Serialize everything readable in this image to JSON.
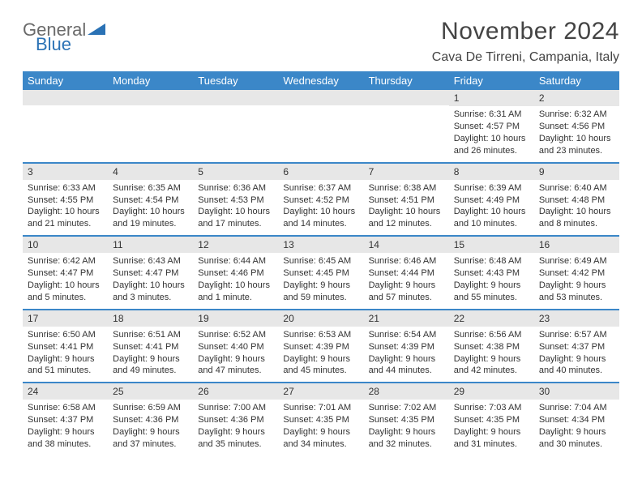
{
  "brand": {
    "word1": "General",
    "word2": "Blue",
    "triangle_color": "#2a72b5",
    "word1_color": "#6a6a6a",
    "word2_color": "#2a72b5"
  },
  "header": {
    "title": "November 2024",
    "location": "Cava De Tirreni, Campania, Italy"
  },
  "colors": {
    "header_bar": "#3b87c8",
    "daynum_bg": "#e7e7e7",
    "rule": "#3b87c8",
    "text": "#333333",
    "bg": "#ffffff"
  },
  "dow": [
    "Sunday",
    "Monday",
    "Tuesday",
    "Wednesday",
    "Thursday",
    "Friday",
    "Saturday"
  ],
  "weeks": [
    [
      {
        "n": "",
        "sunrise": "",
        "sunset": "",
        "daylight": ""
      },
      {
        "n": "",
        "sunrise": "",
        "sunset": "",
        "daylight": ""
      },
      {
        "n": "",
        "sunrise": "",
        "sunset": "",
        "daylight": ""
      },
      {
        "n": "",
        "sunrise": "",
        "sunset": "",
        "daylight": ""
      },
      {
        "n": "",
        "sunrise": "",
        "sunset": "",
        "daylight": ""
      },
      {
        "n": "1",
        "sunrise": "Sunrise: 6:31 AM",
        "sunset": "Sunset: 4:57 PM",
        "daylight": "Daylight: 10 hours and 26 minutes."
      },
      {
        "n": "2",
        "sunrise": "Sunrise: 6:32 AM",
        "sunset": "Sunset: 4:56 PM",
        "daylight": "Daylight: 10 hours and 23 minutes."
      }
    ],
    [
      {
        "n": "3",
        "sunrise": "Sunrise: 6:33 AM",
        "sunset": "Sunset: 4:55 PM",
        "daylight": "Daylight: 10 hours and 21 minutes."
      },
      {
        "n": "4",
        "sunrise": "Sunrise: 6:35 AM",
        "sunset": "Sunset: 4:54 PM",
        "daylight": "Daylight: 10 hours and 19 minutes."
      },
      {
        "n": "5",
        "sunrise": "Sunrise: 6:36 AM",
        "sunset": "Sunset: 4:53 PM",
        "daylight": "Daylight: 10 hours and 17 minutes."
      },
      {
        "n": "6",
        "sunrise": "Sunrise: 6:37 AM",
        "sunset": "Sunset: 4:52 PM",
        "daylight": "Daylight: 10 hours and 14 minutes."
      },
      {
        "n": "7",
        "sunrise": "Sunrise: 6:38 AM",
        "sunset": "Sunset: 4:51 PM",
        "daylight": "Daylight: 10 hours and 12 minutes."
      },
      {
        "n": "8",
        "sunrise": "Sunrise: 6:39 AM",
        "sunset": "Sunset: 4:49 PM",
        "daylight": "Daylight: 10 hours and 10 minutes."
      },
      {
        "n": "9",
        "sunrise": "Sunrise: 6:40 AM",
        "sunset": "Sunset: 4:48 PM",
        "daylight": "Daylight: 10 hours and 8 minutes."
      }
    ],
    [
      {
        "n": "10",
        "sunrise": "Sunrise: 6:42 AM",
        "sunset": "Sunset: 4:47 PM",
        "daylight": "Daylight: 10 hours and 5 minutes."
      },
      {
        "n": "11",
        "sunrise": "Sunrise: 6:43 AM",
        "sunset": "Sunset: 4:47 PM",
        "daylight": "Daylight: 10 hours and 3 minutes."
      },
      {
        "n": "12",
        "sunrise": "Sunrise: 6:44 AM",
        "sunset": "Sunset: 4:46 PM",
        "daylight": "Daylight: 10 hours and 1 minute."
      },
      {
        "n": "13",
        "sunrise": "Sunrise: 6:45 AM",
        "sunset": "Sunset: 4:45 PM",
        "daylight": "Daylight: 9 hours and 59 minutes."
      },
      {
        "n": "14",
        "sunrise": "Sunrise: 6:46 AM",
        "sunset": "Sunset: 4:44 PM",
        "daylight": "Daylight: 9 hours and 57 minutes."
      },
      {
        "n": "15",
        "sunrise": "Sunrise: 6:48 AM",
        "sunset": "Sunset: 4:43 PM",
        "daylight": "Daylight: 9 hours and 55 minutes."
      },
      {
        "n": "16",
        "sunrise": "Sunrise: 6:49 AM",
        "sunset": "Sunset: 4:42 PM",
        "daylight": "Daylight: 9 hours and 53 minutes."
      }
    ],
    [
      {
        "n": "17",
        "sunrise": "Sunrise: 6:50 AM",
        "sunset": "Sunset: 4:41 PM",
        "daylight": "Daylight: 9 hours and 51 minutes."
      },
      {
        "n": "18",
        "sunrise": "Sunrise: 6:51 AM",
        "sunset": "Sunset: 4:41 PM",
        "daylight": "Daylight: 9 hours and 49 minutes."
      },
      {
        "n": "19",
        "sunrise": "Sunrise: 6:52 AM",
        "sunset": "Sunset: 4:40 PM",
        "daylight": "Daylight: 9 hours and 47 minutes."
      },
      {
        "n": "20",
        "sunrise": "Sunrise: 6:53 AM",
        "sunset": "Sunset: 4:39 PM",
        "daylight": "Daylight: 9 hours and 45 minutes."
      },
      {
        "n": "21",
        "sunrise": "Sunrise: 6:54 AM",
        "sunset": "Sunset: 4:39 PM",
        "daylight": "Daylight: 9 hours and 44 minutes."
      },
      {
        "n": "22",
        "sunrise": "Sunrise: 6:56 AM",
        "sunset": "Sunset: 4:38 PM",
        "daylight": "Daylight: 9 hours and 42 minutes."
      },
      {
        "n": "23",
        "sunrise": "Sunrise: 6:57 AM",
        "sunset": "Sunset: 4:37 PM",
        "daylight": "Daylight: 9 hours and 40 minutes."
      }
    ],
    [
      {
        "n": "24",
        "sunrise": "Sunrise: 6:58 AM",
        "sunset": "Sunset: 4:37 PM",
        "daylight": "Daylight: 9 hours and 38 minutes."
      },
      {
        "n": "25",
        "sunrise": "Sunrise: 6:59 AM",
        "sunset": "Sunset: 4:36 PM",
        "daylight": "Daylight: 9 hours and 37 minutes."
      },
      {
        "n": "26",
        "sunrise": "Sunrise: 7:00 AM",
        "sunset": "Sunset: 4:36 PM",
        "daylight": "Daylight: 9 hours and 35 minutes."
      },
      {
        "n": "27",
        "sunrise": "Sunrise: 7:01 AM",
        "sunset": "Sunset: 4:35 PM",
        "daylight": "Daylight: 9 hours and 34 minutes."
      },
      {
        "n": "28",
        "sunrise": "Sunrise: 7:02 AM",
        "sunset": "Sunset: 4:35 PM",
        "daylight": "Daylight: 9 hours and 32 minutes."
      },
      {
        "n": "29",
        "sunrise": "Sunrise: 7:03 AM",
        "sunset": "Sunset: 4:35 PM",
        "daylight": "Daylight: 9 hours and 31 minutes."
      },
      {
        "n": "30",
        "sunrise": "Sunrise: 7:04 AM",
        "sunset": "Sunset: 4:34 PM",
        "daylight": "Daylight: 9 hours and 30 minutes."
      }
    ]
  ]
}
